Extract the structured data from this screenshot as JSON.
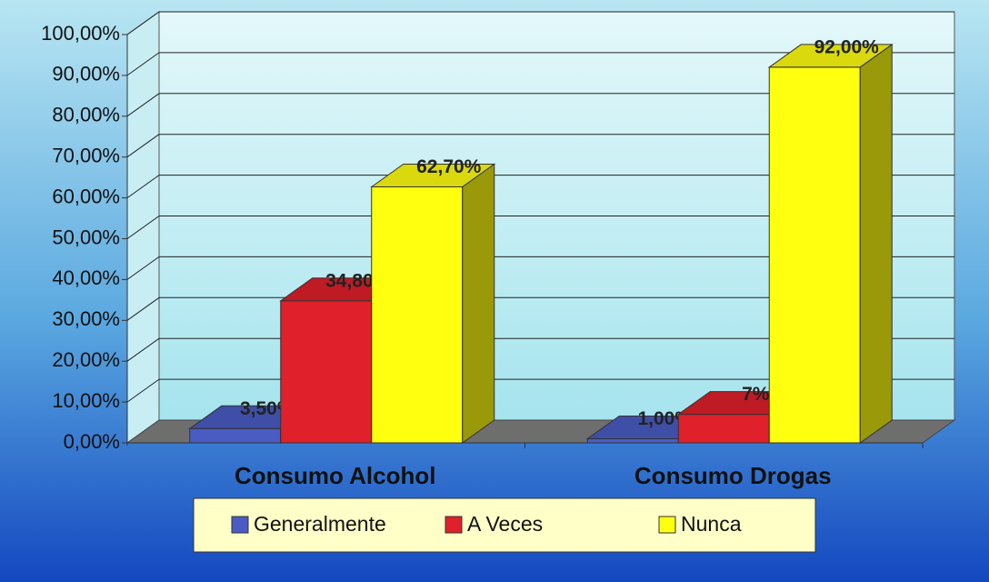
{
  "chart_data": {
    "type": "bar3d",
    "categories": [
      "Consumo Alcohol",
      "Consumo Drogas"
    ],
    "series": [
      {
        "name": "Generalmente",
        "color": "#4a5cc4",
        "values": [
          3.5,
          1.0
        ],
        "value_labels": [
          "3,50%",
          "1,00%"
        ]
      },
      {
        "name": "A Veces",
        "color": "#e0202a",
        "values": [
          34.8,
          7
        ],
        "value_labels": [
          "34,80%",
          "7%"
        ]
      },
      {
        "name": "Nunca",
        "color": "#ffff10",
        "values": [
          62.7,
          92.0
        ],
        "value_labels": [
          "62,70%",
          "92,00%"
        ]
      }
    ],
    "ylim": [
      0,
      100
    ],
    "yticks": [
      {
        "value": 0,
        "label": "0,00%"
      },
      {
        "value": 10,
        "label": "10,00%"
      },
      {
        "value": 20,
        "label": "20,00%"
      },
      {
        "value": 30,
        "label": "30,00%"
      },
      {
        "value": 40,
        "label": "40,00%"
      },
      {
        "value": 50,
        "label": "50,00%"
      },
      {
        "value": 60,
        "label": "60,00%"
      },
      {
        "value": 70,
        "label": "70,00%"
      },
      {
        "value": 80,
        "label": "80,00%"
      },
      {
        "value": 90,
        "label": "90,00%"
      },
      {
        "value": 100,
        "label": "100,00%"
      }
    ],
    "grid": true,
    "legend": "bottom"
  }
}
